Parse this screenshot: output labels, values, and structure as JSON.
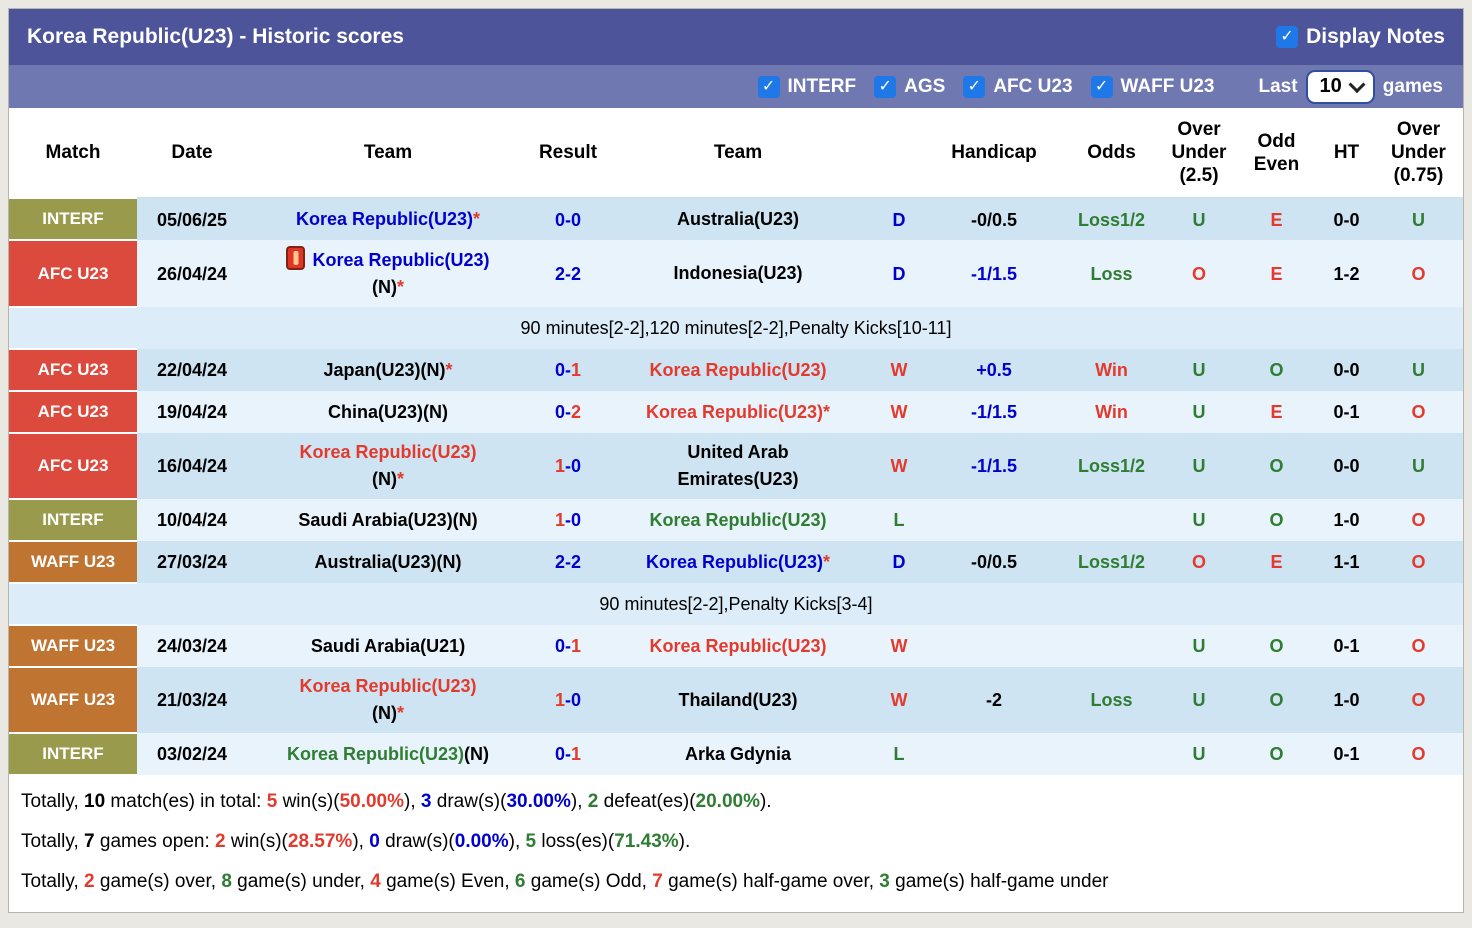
{
  "palette": {
    "blue": "#0000cc",
    "red": "#e23b2d",
    "green": "#2e7d32",
    "black": "#000000",
    "white": "#ffffff",
    "olive": "#9a9a4d",
    "red_badge": "#dc4a3d",
    "orange": "#bf7431",
    "titlebar_bg": "#4d5499",
    "filterbar_bg": "#6f78b0",
    "checkbox_blue": "#1e78e8"
  },
  "row_shades": {
    "dark": "#cfe4f2",
    "light": "#e9f3fb",
    "note": "#dcedf9"
  },
  "header": {
    "title": "Korea Republic(U23) - Historic scores",
    "display_notes_label": "Display Notes",
    "display_notes_checked": true,
    "filters": [
      {
        "label": "INTERF",
        "checked": true
      },
      {
        "label": "AGS",
        "checked": true
      },
      {
        "label": "AFC U23",
        "checked": true
      },
      {
        "label": "WAFF U23",
        "checked": true
      }
    ],
    "last_label": "Last",
    "games_count": "10",
    "games_label": "games"
  },
  "table": {
    "columns": [
      "Match",
      "Date",
      "Team",
      "Result",
      "Team",
      "",
      "Handicap",
      "Odds",
      "Over\nUnder\n(2.5)",
      "Odd\nEven",
      "HT",
      "Over\nUnder\n(0.75)"
    ],
    "rows": [
      {
        "type": "match",
        "shade": "dark",
        "league": {
          "label": "INTERF",
          "color_key": "olive"
        },
        "date": "05/06/25",
        "home": {
          "lines": [
            [
              {
                "t": "Korea Republic(U23)",
                "c": "blue"
              },
              {
                "t": "*",
                "c": "red"
              }
            ]
          ]
        },
        "result": {
          "home": "0",
          "away": "0",
          "hc": "blue",
          "ac": "blue"
        },
        "away": {
          "lines": [
            [
              {
                "t": "Australia(U23)",
                "c": "black"
              }
            ]
          ]
        },
        "wdl": {
          "t": "D",
          "c": "blue"
        },
        "handicap": {
          "t": "-0/0.5",
          "c": "black"
        },
        "odds": {
          "t": "Loss1/2",
          "c": "green"
        },
        "ou25": {
          "t": "U",
          "c": "green"
        },
        "oe": {
          "t": "E",
          "c": "red"
        },
        "ht": "0-0",
        "ou075": {
          "t": "U",
          "c": "green"
        }
      },
      {
        "type": "match",
        "shade": "light",
        "league": {
          "label": "AFC U23",
          "color_key": "red_badge"
        },
        "date": "26/04/24",
        "home": {
          "icon": "red-card",
          "lines": [
            [
              {
                "t": "Korea Republic(U23)",
                "c": "blue"
              }
            ],
            [
              {
                "t": "(N)",
                "c": "black"
              },
              {
                "t": "*",
                "c": "red"
              }
            ]
          ]
        },
        "result": {
          "home": "2",
          "away": "2",
          "hc": "blue",
          "ac": "blue"
        },
        "away": {
          "lines": [
            [
              {
                "t": "Indonesia(U23)",
                "c": "black"
              }
            ]
          ]
        },
        "wdl": {
          "t": "D",
          "c": "blue"
        },
        "handicap": {
          "t": "-1/1.5",
          "c": "blue"
        },
        "odds": {
          "t": "Loss",
          "c": "green"
        },
        "ou25": {
          "t": "O",
          "c": "red"
        },
        "oe": {
          "t": "E",
          "c": "red"
        },
        "ht": "1-2",
        "ou075": {
          "t": "O",
          "c": "red"
        }
      },
      {
        "type": "note",
        "shade": "note",
        "text": "90 minutes[2-2],120 minutes[2-2],Penalty Kicks[10-11]"
      },
      {
        "type": "match",
        "shade": "dark",
        "league": {
          "label": "AFC U23",
          "color_key": "red_badge"
        },
        "date": "22/04/24",
        "home": {
          "lines": [
            [
              {
                "t": "Japan(U23)(N)",
                "c": "black"
              },
              {
                "t": "*",
                "c": "red"
              }
            ]
          ]
        },
        "result": {
          "home": "0",
          "away": "1",
          "hc": "blue",
          "ac": "red"
        },
        "away": {
          "lines": [
            [
              {
                "t": "Korea Republic(U23)",
                "c": "red"
              }
            ]
          ]
        },
        "wdl": {
          "t": "W",
          "c": "red"
        },
        "handicap": {
          "t": "+0.5",
          "c": "blue"
        },
        "odds": {
          "t": "Win",
          "c": "red"
        },
        "ou25": {
          "t": "U",
          "c": "green"
        },
        "oe": {
          "t": "O",
          "c": "green"
        },
        "ht": "0-0",
        "ou075": {
          "t": "U",
          "c": "green"
        }
      },
      {
        "type": "match",
        "shade": "light",
        "league": {
          "label": "AFC U23",
          "color_key": "red_badge"
        },
        "date": "19/04/24",
        "home": {
          "lines": [
            [
              {
                "t": "China(U23)(N)",
                "c": "black"
              }
            ]
          ]
        },
        "result": {
          "home": "0",
          "away": "2",
          "hc": "blue",
          "ac": "red"
        },
        "away": {
          "lines": [
            [
              {
                "t": "Korea Republic(U23)*",
                "c": "red"
              }
            ]
          ]
        },
        "wdl": {
          "t": "W",
          "c": "red"
        },
        "handicap": {
          "t": "-1/1.5",
          "c": "blue"
        },
        "odds": {
          "t": "Win",
          "c": "red"
        },
        "ou25": {
          "t": "U",
          "c": "green"
        },
        "oe": {
          "t": "E",
          "c": "red"
        },
        "ht": "0-1",
        "ou075": {
          "t": "O",
          "c": "red"
        }
      },
      {
        "type": "match",
        "shade": "dark",
        "league": {
          "label": "AFC U23",
          "color_key": "red_badge"
        },
        "date": "16/04/24",
        "home": {
          "lines": [
            [
              {
                "t": "Korea Republic(U23)",
                "c": "red"
              }
            ],
            [
              {
                "t": "(N)",
                "c": "black"
              },
              {
                "t": "*",
                "c": "red"
              }
            ]
          ]
        },
        "result": {
          "home": "1",
          "away": "0",
          "hc": "red",
          "ac": "blue"
        },
        "away": {
          "lines": [
            [
              {
                "t": "United Arab",
                "c": "black"
              }
            ],
            [
              {
                "t": "Emirates(U23)",
                "c": "black"
              }
            ]
          ]
        },
        "wdl": {
          "t": "W",
          "c": "red"
        },
        "handicap": {
          "t": "-1/1.5",
          "c": "blue"
        },
        "odds": {
          "t": "Loss1/2",
          "c": "green"
        },
        "ou25": {
          "t": "U",
          "c": "green"
        },
        "oe": {
          "t": "O",
          "c": "green"
        },
        "ht": "0-0",
        "ou075": {
          "t": "U",
          "c": "green"
        }
      },
      {
        "type": "match",
        "shade": "light",
        "league": {
          "label": "INTERF",
          "color_key": "olive"
        },
        "date": "10/04/24",
        "home": {
          "lines": [
            [
              {
                "t": "Saudi Arabia(U23)(N)",
                "c": "black"
              }
            ]
          ]
        },
        "result": {
          "home": "1",
          "away": "0",
          "hc": "red",
          "ac": "blue"
        },
        "away": {
          "lines": [
            [
              {
                "t": "Korea Republic(U23)",
                "c": "green"
              }
            ]
          ]
        },
        "wdl": {
          "t": "L",
          "c": "green"
        },
        "handicap": {
          "t": "",
          "c": "black"
        },
        "odds": {
          "t": "",
          "c": "black"
        },
        "ou25": {
          "t": "U",
          "c": "green"
        },
        "oe": {
          "t": "O",
          "c": "green"
        },
        "ht": "1-0",
        "ou075": {
          "t": "O",
          "c": "red"
        }
      },
      {
        "type": "match",
        "shade": "dark",
        "league": {
          "label": "WAFF U23",
          "color_key": "orange"
        },
        "date": "27/03/24",
        "home": {
          "lines": [
            [
              {
                "t": "Australia(U23)(N)",
                "c": "black"
              }
            ]
          ]
        },
        "result": {
          "home": "2",
          "away": "2",
          "hc": "blue",
          "ac": "blue"
        },
        "away": {
          "lines": [
            [
              {
                "t": "Korea Republic(U23)",
                "c": "blue"
              },
              {
                "t": "*",
                "c": "red"
              }
            ]
          ]
        },
        "wdl": {
          "t": "D",
          "c": "blue"
        },
        "handicap": {
          "t": "-0/0.5",
          "c": "black"
        },
        "odds": {
          "t": "Loss1/2",
          "c": "green"
        },
        "ou25": {
          "t": "O",
          "c": "red"
        },
        "oe": {
          "t": "E",
          "c": "red"
        },
        "ht": "1-1",
        "ou075": {
          "t": "O",
          "c": "red"
        }
      },
      {
        "type": "note",
        "shade": "note",
        "text": "90 minutes[2-2],Penalty Kicks[3-4]"
      },
      {
        "type": "match",
        "shade": "light",
        "league": {
          "label": "WAFF U23",
          "color_key": "orange"
        },
        "date": "24/03/24",
        "home": {
          "lines": [
            [
              {
                "t": "Saudi Arabia(U21)",
                "c": "black"
              }
            ]
          ]
        },
        "result": {
          "home": "0",
          "away": "1",
          "hc": "blue",
          "ac": "red"
        },
        "away": {
          "lines": [
            [
              {
                "t": "Korea Republic(U23)",
                "c": "red"
              }
            ]
          ]
        },
        "wdl": {
          "t": "W",
          "c": "red"
        },
        "handicap": {
          "t": "",
          "c": "black"
        },
        "odds": {
          "t": "",
          "c": "black"
        },
        "ou25": {
          "t": "U",
          "c": "green"
        },
        "oe": {
          "t": "O",
          "c": "green"
        },
        "ht": "0-1",
        "ou075": {
          "t": "O",
          "c": "red"
        }
      },
      {
        "type": "match",
        "shade": "dark",
        "league": {
          "label": "WAFF U23",
          "color_key": "orange"
        },
        "date": "21/03/24",
        "home": {
          "lines": [
            [
              {
                "t": "Korea Republic(U23)",
                "c": "red"
              }
            ],
            [
              {
                "t": "(N)",
                "c": "black"
              },
              {
                "t": "*",
                "c": "red"
              }
            ]
          ]
        },
        "result": {
          "home": "1",
          "away": "0",
          "hc": "red",
          "ac": "blue"
        },
        "away": {
          "lines": [
            [
              {
                "t": "Thailand(U23)",
                "c": "black"
              }
            ]
          ]
        },
        "wdl": {
          "t": "W",
          "c": "red"
        },
        "handicap": {
          "t": "-2",
          "c": "black"
        },
        "odds": {
          "t": "Loss",
          "c": "green"
        },
        "ou25": {
          "t": "U",
          "c": "green"
        },
        "oe": {
          "t": "O",
          "c": "green"
        },
        "ht": "1-0",
        "ou075": {
          "t": "O",
          "c": "red"
        }
      },
      {
        "type": "match",
        "shade": "light",
        "league": {
          "label": "INTERF",
          "color_key": "olive"
        },
        "date": "03/02/24",
        "home": {
          "lines": [
            [
              {
                "t": "Korea Republic(U23)",
                "c": "green"
              },
              {
                "t": "(N)",
                "c": "black"
              }
            ]
          ]
        },
        "result": {
          "home": "0",
          "away": "1",
          "hc": "blue",
          "ac": "red"
        },
        "away": {
          "lines": [
            [
              {
                "t": "Arka Gdynia",
                "c": "black"
              }
            ]
          ]
        },
        "wdl": {
          "t": "L",
          "c": "green"
        },
        "handicap": {
          "t": "",
          "c": "black"
        },
        "odds": {
          "t": "",
          "c": "black"
        },
        "ou25": {
          "t": "U",
          "c": "green"
        },
        "oe": {
          "t": "O",
          "c": "green"
        },
        "ht": "0-1",
        "ou075": {
          "t": "O",
          "c": "red"
        }
      }
    ]
  },
  "summary": [
    [
      {
        "t": "Totally, ",
        "c": "black"
      },
      {
        "t": "10",
        "c": "black",
        "b": true
      },
      {
        "t": " match(es) in total: ",
        "c": "black"
      },
      {
        "t": "5",
        "c": "red",
        "b": true
      },
      {
        "t": " win(s)(",
        "c": "black"
      },
      {
        "t": "50.00%",
        "c": "red",
        "b": true
      },
      {
        "t": "), ",
        "c": "black"
      },
      {
        "t": "3",
        "c": "blue",
        "b": true
      },
      {
        "t": " draw(s)(",
        "c": "black"
      },
      {
        "t": "30.00%",
        "c": "blue",
        "b": true
      },
      {
        "t": "), ",
        "c": "black"
      },
      {
        "t": "2",
        "c": "green",
        "b": true
      },
      {
        "t": " defeat(es)(",
        "c": "black"
      },
      {
        "t": "20.00%",
        "c": "green",
        "b": true
      },
      {
        "t": ").",
        "c": "black"
      }
    ],
    [
      {
        "t": "Totally, ",
        "c": "black"
      },
      {
        "t": "7",
        "c": "black",
        "b": true
      },
      {
        "t": " games open: ",
        "c": "black"
      },
      {
        "t": "2",
        "c": "red",
        "b": true
      },
      {
        "t": " win(s)(",
        "c": "black"
      },
      {
        "t": "28.57%",
        "c": "red",
        "b": true
      },
      {
        "t": "), ",
        "c": "black"
      },
      {
        "t": "0",
        "c": "blue",
        "b": true
      },
      {
        "t": " draw(s)(",
        "c": "black"
      },
      {
        "t": "0.00%",
        "c": "blue",
        "b": true
      },
      {
        "t": "), ",
        "c": "black"
      },
      {
        "t": "5",
        "c": "green",
        "b": true
      },
      {
        "t": " loss(es)(",
        "c": "black"
      },
      {
        "t": "71.43%",
        "c": "green",
        "b": true
      },
      {
        "t": ").",
        "c": "black"
      }
    ],
    [
      {
        "t": "Totally, ",
        "c": "black"
      },
      {
        "t": "2",
        "c": "red",
        "b": true
      },
      {
        "t": " game(s) over, ",
        "c": "black"
      },
      {
        "t": "8",
        "c": "green",
        "b": true
      },
      {
        "t": " game(s) under, ",
        "c": "black"
      },
      {
        "t": "4",
        "c": "red",
        "b": true
      },
      {
        "t": " game(s) Even, ",
        "c": "black"
      },
      {
        "t": "6",
        "c": "green",
        "b": true
      },
      {
        "t": " game(s) Odd, ",
        "c": "black"
      },
      {
        "t": "7",
        "c": "red",
        "b": true
      },
      {
        "t": " game(s) half-game over, ",
        "c": "black"
      },
      {
        "t": "3",
        "c": "green",
        "b": true
      },
      {
        "t": " game(s) half-game under",
        "c": "black"
      }
    ]
  ]
}
